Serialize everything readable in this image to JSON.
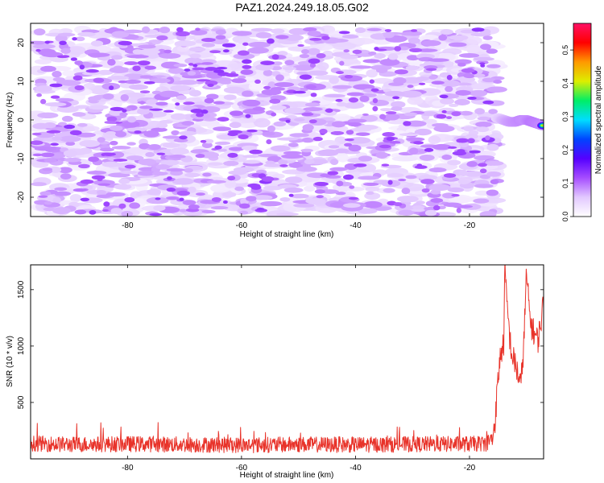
{
  "title": "PAZ1.2024.249.18.05.G02",
  "colors": {
    "snr_line": "#e8332a",
    "axis": "#000000",
    "colorbar_stops": [
      "#ffffff",
      "#e2c8ff",
      "#a64dff",
      "#5500ff",
      "#0044ff",
      "#00ddff",
      "#00ee66",
      "#ddee00",
      "#ff9900",
      "#ff0000",
      "#ff1166"
    ]
  },
  "chart_data": [
    {
      "type": "heatmap",
      "xlabel": "Height of straight line (km)",
      "ylabel": "Frequency (Hz)",
      "xlim": [
        -97,
        -7
      ],
      "ylim": [
        -25,
        25
      ],
      "xticks": [
        -80,
        -60,
        -40,
        -20
      ],
      "yticks": [
        -20,
        -10,
        0,
        10,
        20
      ],
      "colorbar": {
        "label": "Normalized spectral amplitude",
        "range": [
          0,
          0.58
        ],
        "ticks": [
          0.0,
          0.1,
          0.2,
          0.3,
          0.4,
          0.5
        ]
      },
      "noise_region": {
        "x": [
          -96,
          -15
        ],
        "y": [
          -24.5,
          23.5
        ],
        "typical_amplitude": 0.07
      },
      "signal": {
        "x": [
          -15,
          -14,
          -13,
          -12,
          -11,
          -10,
          -9,
          -8,
          -7
        ],
        "center_frequency": [
          0.5,
          0.0,
          -0.5,
          -0.5,
          0.0,
          0.0,
          -0.5,
          -1.0,
          -1.5
        ],
        "peak_amplitude": [
          0.15,
          0.3,
          0.38,
          0.42,
          0.45,
          0.43,
          0.5,
          0.48,
          0.45
        ]
      }
    },
    {
      "type": "line",
      "xlabel": "Height of straight line (km)",
      "ylabel": "SNR (10 * v/v)",
      "xlim": [
        -97,
        -7
      ],
      "ylim": [
        0,
        1720
      ],
      "xticks": [
        -80,
        -60,
        -40,
        -20
      ],
      "yticks": [
        500,
        1000,
        1500
      ],
      "series": [
        {
          "x": [
            -97,
            -90,
            -80,
            -70,
            -60,
            -50,
            -40,
            -30,
            -20,
            -17,
            -16,
            -15.5,
            -15,
            -14.5,
            -14,
            -13.8,
            -13.5,
            -13.2,
            -13,
            -12.5,
            -12,
            -11.5,
            -11,
            -10.5,
            -10,
            -9.5,
            -9,
            -8.5,
            -8,
            -7.5,
            -7
          ],
          "values": [
            130,
            120,
            125,
            120,
            115,
            120,
            118,
            122,
            125,
            130,
            180,
            350,
            700,
            950,
            1000,
            1710,
            1400,
            1250,
            1100,
            900,
            850,
            750,
            650,
            1000,
            1650,
            1300,
            1150,
            1100,
            1050,
            1200,
            1400
          ]
        }
      ]
    }
  ]
}
